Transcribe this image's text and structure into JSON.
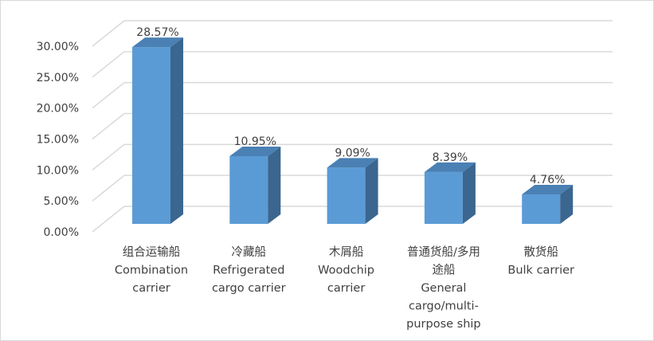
{
  "chart_data": {
    "type": "bar",
    "style": "3d-column",
    "categories": [
      [
        "组合运输船",
        "Combination",
        "carrier"
      ],
      [
        "冷藏船",
        "Refrigerated",
        "cargo carrier"
      ],
      [
        "木屑船",
        "Woodchip",
        "carrier"
      ],
      [
        "普通货船/多用",
        "途船",
        "General",
        "cargo/multi-",
        "purpose ship"
      ],
      [
        "散货船",
        "Bulk carrier"
      ]
    ],
    "values": [
      28.57,
      10.95,
      9.09,
      8.39,
      4.76
    ],
    "data_labels": [
      "28.57%",
      "10.95%",
      "9.09%",
      "8.39%",
      "4.76%"
    ],
    "yticks": [
      "0.00%",
      "5.00%",
      "10.00%",
      "15.00%",
      "20.00%",
      "25.00%",
      "30.00%"
    ],
    "ylim": [
      0,
      30
    ],
    "grid": true,
    "legend": "none",
    "colors": {
      "front": "#5b9bd5",
      "side": "#3a668f",
      "top": "#4a80b3",
      "grid": "#d9d9d9"
    }
  }
}
